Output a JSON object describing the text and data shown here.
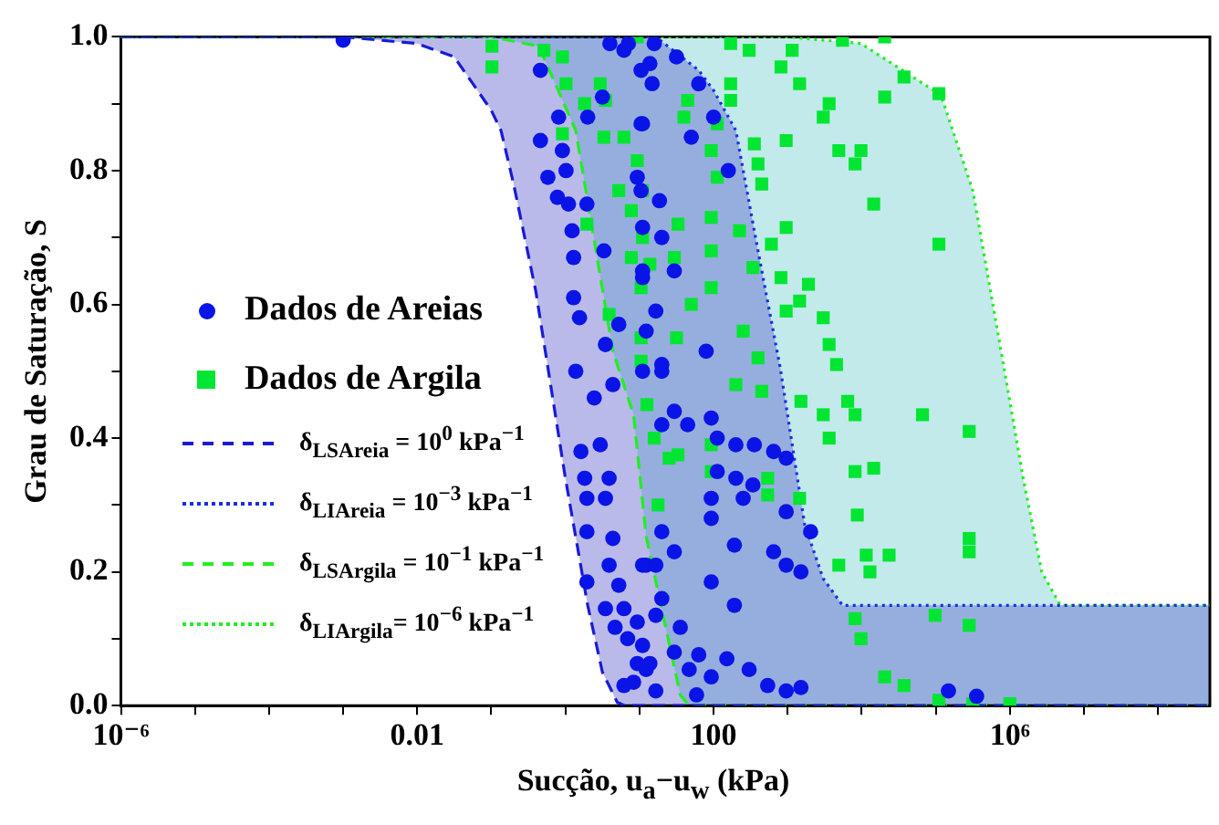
{
  "chart_data": {
    "type": "scatter",
    "xlabel": "Sucção, u$_{a}$−u$_{w}$ (kPa)",
    "ylabel": "Grau de Saturação, S",
    "log": "x",
    "grid": false,
    "legend": "left",
    "xlim": [
      1e-06,
      500000000.0
    ],
    "ylim": [
      0,
      1
    ],
    "xticks": [
      {
        "value": 1e-06,
        "label": "10⁻⁶"
      },
      {
        "value": 1e-05,
        "label": null
      },
      {
        "value": 0.0001,
        "label": null
      },
      {
        "value": 0.001,
        "label": null
      },
      {
        "value": 0.01,
        "label": "0.01"
      },
      {
        "value": 0.1,
        "label": null
      },
      {
        "value": 1,
        "label": null
      },
      {
        "value": 10,
        "label": null
      },
      {
        "value": 100,
        "label": "100"
      },
      {
        "value": 1000,
        "label": null
      },
      {
        "value": 10000.0,
        "label": null
      },
      {
        "value": 100000.0,
        "label": null
      },
      {
        "value": 1000000.0,
        "label": "10⁶"
      },
      {
        "value": 10000000.0,
        "label": null
      },
      {
        "value": 100000000.0,
        "label": null
      }
    ],
    "yticks": [
      {
        "value": 0,
        "label": "0.0"
      },
      {
        "value": 0.1,
        "label": null
      },
      {
        "value": 0.2,
        "label": "0.2"
      },
      {
        "value": 0.3,
        "label": null
      },
      {
        "value": 0.4,
        "label": "0.4"
      },
      {
        "value": 0.5,
        "label": null
      },
      {
        "value": 0.6,
        "label": "0.6"
      },
      {
        "value": 0.7,
        "label": null
      },
      {
        "value": 0.8,
        "label": "0.8"
      },
      {
        "value": 0.9,
        "label": null
      },
      {
        "value": 1,
        "label": "1.0"
      }
    ],
    "series": [
      {
        "name": "Dados de Areias",
        "marker": "circle",
        "color": "#0a14e6",
        "x": [
          0.001,
          0.46,
          0.58,
          1.02,
          0.78,
          1.1,
          1.95,
          1.23,
          1.29,
          1.29,
          1.55,
          3.31,
          1.38,
          0.81,
          0.91,
          0.46,
          3.47,
          5.25,
          10.5,
          6.17,
          10.5,
          9.33,
          11,
          2.45,
          4.37,
          1.62,
          2.95,
          1.82,
          3.89,
          1.95,
          3.47,
          1.95,
          4.37,
          3.89,
          11,
          1.95,
          5.25,
          3.47,
          6.17,
          4.68,
          9.33,
          6.92,
          11,
          9.33,
          12.3,
          8.32,
          6.17,
          11,
          20,
          29.5,
          20,
          44.7,
          93,
          112,
          200,
          355,
          646,
          955,
          112,
          200,
          339,
          93,
          251,
          93,
          955,
          2040,
          20,
          29.5,
          191,
          646,
          12.3,
          16.6,
          955,
          1510,
          93,
          20,
          191,
          16.6,
          35.5,
          29.5,
          63,
          151,
          13.8,
          46.8,
          302,
          93,
          537,
          955,
          1510,
          148000,
          355000,
          16.6,
          58.9,
          13.8,
          14.8,
          11,
          10.5,
          18.6,
          11,
          20,
          16.6,
          12.3,
          79.4,
          11,
          29.5,
          20,
          3.98,
          7.08,
          15.8,
          31.6,
          63,
          100,
          50,
          158,
          3.16,
          2.0
        ],
        "values": [
          0.995,
          0.845,
          0.79,
          0.8,
          0.76,
          0.75,
          0.75,
          0.71,
          0.67,
          0.61,
          0.58,
          0.68,
          0.5,
          0.88,
          0.83,
          0.95,
          0.54,
          0.57,
          0.87,
          0.98,
          0.95,
          0.79,
          0.64,
          0.46,
          0.48,
          0.38,
          0.39,
          0.34,
          0.34,
          0.31,
          0.31,
          0.26,
          0.25,
          0.21,
          0.21,
          0.185,
          0.18,
          0.145,
          0.145,
          0.117,
          0.125,
          0.1,
          0.09,
          0.063,
          0.054,
          0.035,
          0.03,
          0.5,
          0.5,
          0.44,
          0.42,
          0.42,
          0.43,
          0.4,
          0.39,
          0.39,
          0.38,
          0.37,
          0.35,
          0.34,
          0.33,
          0.31,
          0.31,
          0.28,
          0.29,
          0.26,
          0.26,
          0.23,
          0.24,
          0.23,
          0.21,
          0.21,
          0.21,
          0.2,
          0.185,
          0.16,
          0.15,
          0.135,
          0.117,
          0.08,
          0.076,
          0.07,
          0.063,
          0.054,
          0.054,
          0.043,
          0.03,
          0.022,
          0.027,
          0.022,
          0.014,
          0.022,
          0.016,
          0.96,
          0.93,
          0.87,
          0.77,
          0.755,
          0.715,
          0.7,
          0.59,
          0.56,
          0.53,
          0.65,
          0.65,
          0.51,
          0.99,
          0.99,
          0.99,
          0.97,
          0.93,
          0.88,
          0.85,
          0.8,
          0.91,
          0.88
        ]
      },
      {
        "name": "Dados de Argila",
        "marker": "square",
        "color": "#00e632",
        "x": [
          0.102,
          0.102,
          0.513,
          0.912,
          1.02,
          0.912,
          1.95,
          3.89,
          1.82,
          3.47,
          3.31,
          6.17,
          5.25,
          7.76,
          11,
          9.33,
          7.76,
          11,
          10.5,
          10.5,
          10.5,
          9.33,
          2.95,
          44.7,
          39.8,
          112,
          170,
          170,
          93,
          112,
          93,
          224,
          93,
          33.1,
          13.8,
          29.5,
          93,
          355,
          398,
          447,
          339,
          603,
          813,
          955,
          955,
          1450,
          1150,
          813,
          3020,
          3630,
          4900,
          8130,
          9770,
          14500,
          37200,
          20400,
          110000,
          110000,
          955,
          1450,
          1910,
          3020,
          3630,
          4570,
          170,
          302,
          5500,
          20400,
          25.1,
          93,
          200,
          447,
          537,
          537,
          1450,
          1510,
          3020,
          3630,
          6460,
          8130,
          8130,
          14500,
          66100,
          282000,
          8710,
          282000,
          282000,
          4900,
          11500,
          23400,
          12900,
          8130,
          9770,
          97700,
          282000,
          20400,
          37200,
          110000,
          316000,
          1000000,
          93,
          33.1,
          12.6,
          15.8,
          17.8,
          31.6,
          50,
          251,
          398
        ],
        "values": [
          0.986,
          0.955,
          0.98,
          0.97,
          0.93,
          0.855,
          0.72,
          0.585,
          0.9,
          0.905,
          0.85,
          0.85,
          0.77,
          0.74,
          0.77,
          0.815,
          0.67,
          0.7,
          0.625,
          0.55,
          0.515,
          1.0,
          0.93,
          0.905,
          0.88,
          0.87,
          0.93,
          0.905,
          0.83,
          0.79,
          0.73,
          0.71,
          0.68,
          0.72,
          0.66,
          0.67,
          0.625,
          0.84,
          0.81,
          0.78,
          0.655,
          0.69,
          0.64,
          0.715,
          0.845,
          0.93,
          0.98,
          0.955,
          0.88,
          0.9,
          0.83,
          0.81,
          0.83,
          0.75,
          0.94,
          0.91,
          0.915,
          0.69,
          0.59,
          0.605,
          0.63,
          0.58,
          0.54,
          0.51,
          0.99,
          0.98,
          0.995,
          1.0,
          0.37,
          0.35,
          0.48,
          0.47,
          0.34,
          0.315,
          0.31,
          0.455,
          0.435,
          0.4,
          0.455,
          0.435,
          0.35,
          0.355,
          0.435,
          0.41,
          0.285,
          0.25,
          0.23,
          0.21,
          0.225,
          0.225,
          0.2,
          0.13,
          0.1,
          0.135,
          0.12,
          0.043,
          0.03,
          0.008,
          0.003,
          0.003,
          0.39,
          0.375,
          0.45,
          0.4,
          0.3,
          0.55,
          0.6,
          0.56,
          0.52
        ]
      },
      {
        "name": "δ$_{LSAreia}$ = 10$^{0}$ kPa$^{−1}$",
        "type": "line",
        "marker": "none",
        "line_style": "dashed",
        "color": "#1a1ad6",
        "x": [
          1e-06,
          0.001,
          0.01,
          0.0316,
          0.1,
          0.135,
          0.2,
          0.398,
          0.631,
          1.0,
          2.0,
          3.16,
          5.01,
          6.31,
          500000000.0
        ],
        "values": [
          1,
          1,
          0.99,
          0.97,
          0.89,
          0.86,
          0.78,
          0.62,
          0.48,
          0.34,
          0.15,
          0.05,
          0.005,
          0,
          0
        ]
      },
      {
        "name": "δ$_{LIAreia}$ = 10$^{−3}$ kPa$^{−1}$",
        "type": "line",
        "marker": "none",
        "line_style": "dotted",
        "color": "#1a2ee0",
        "x": [
          1e-06,
          3.16,
          16.6,
          63,
          100,
          200,
          398,
          794,
          1700,
          3020,
          5500,
          500000000.0
        ],
        "values": [
          1,
          1,
          1,
          0.95,
          0.92,
          0.86,
          0.68,
          0.505,
          0.27,
          0.19,
          0.15,
          0.15
        ]
      },
      {
        "name": "δ$_{LSArgila}$ = 10$^{−1}$ kPa$^{−1}$",
        "type": "line",
        "marker": "none",
        "line_style": "dashed",
        "color": "#22ee22",
        "x": [
          1e-06,
          0.1,
          0.437,
          1.38,
          4.37,
          8.32,
          12.3,
          20,
          35.5,
          46.8,
          500000000.0
        ],
        "values": [
          1,
          1,
          0.986,
          0.86,
          0.53,
          0.435,
          0.253,
          0.144,
          0.016,
          0,
          0
        ]
      },
      {
        "name": "δ$_{LIArgila}$= 10$^{−6}$ kPa$^{−1}$",
        "type": "line",
        "marker": "none",
        "line_style": "dotted",
        "color": "#22ee22",
        "x": [
          1e-06,
          1000,
          9770,
          117000,
          316000,
          832000,
          1510000,
          2690000,
          4790000,
          500000000.0
        ],
        "values": [
          1,
          1,
          0.99,
          0.913,
          0.77,
          0.505,
          0.34,
          0.2,
          0.15,
          0.15
        ]
      }
    ]
  }
}
